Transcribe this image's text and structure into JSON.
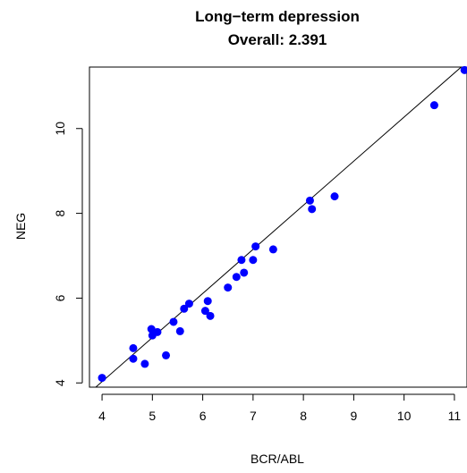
{
  "chart_data": {
    "type": "scatter",
    "title": "Long−term depression",
    "subtitle": "Overall: 2.391",
    "xlabel": "BCR/ABL",
    "ylabel": "NEG",
    "xlim": [
      3.75,
      11.25
    ],
    "ylim": [
      3.9,
      11.45
    ],
    "x_ticks": [
      4,
      5,
      6,
      7,
      8,
      9,
      10,
      11
    ],
    "y_ticks": [
      4,
      6,
      8,
      10
    ],
    "point_color": "#0000ff",
    "line_color": "#000000",
    "grid": false,
    "legend": "none",
    "fit_line": {
      "intercept": -0.13,
      "slope": 1.04
    },
    "points": [
      {
        "x": 4.0,
        "y": 4.12
      },
      {
        "x": 4.62,
        "y": 4.82
      },
      {
        "x": 4.62,
        "y": 4.57
      },
      {
        "x": 4.85,
        "y": 4.45
      },
      {
        "x": 4.98,
        "y": 5.27
      },
      {
        "x": 5.0,
        "y": 5.12
      },
      {
        "x": 5.1,
        "y": 5.2
      },
      {
        "x": 5.27,
        "y": 4.65
      },
      {
        "x": 5.42,
        "y": 5.44
      },
      {
        "x": 5.55,
        "y": 5.22
      },
      {
        "x": 5.63,
        "y": 5.75
      },
      {
        "x": 5.73,
        "y": 5.87
      },
      {
        "x": 6.05,
        "y": 5.7
      },
      {
        "x": 6.1,
        "y": 5.93
      },
      {
        "x": 6.15,
        "y": 5.58
      },
      {
        "x": 6.5,
        "y": 6.25
      },
      {
        "x": 6.67,
        "y": 6.5
      },
      {
        "x": 6.77,
        "y": 6.9
      },
      {
        "x": 6.82,
        "y": 6.6
      },
      {
        "x": 7.0,
        "y": 6.9
      },
      {
        "x": 7.05,
        "y": 7.22
      },
      {
        "x": 7.4,
        "y": 7.15
      },
      {
        "x": 8.13,
        "y": 8.3
      },
      {
        "x": 8.17,
        "y": 8.1
      },
      {
        "x": 8.62,
        "y": 8.4
      },
      {
        "x": 10.6,
        "y": 10.55
      },
      {
        "x": 11.2,
        "y": 11.38
      }
    ]
  }
}
